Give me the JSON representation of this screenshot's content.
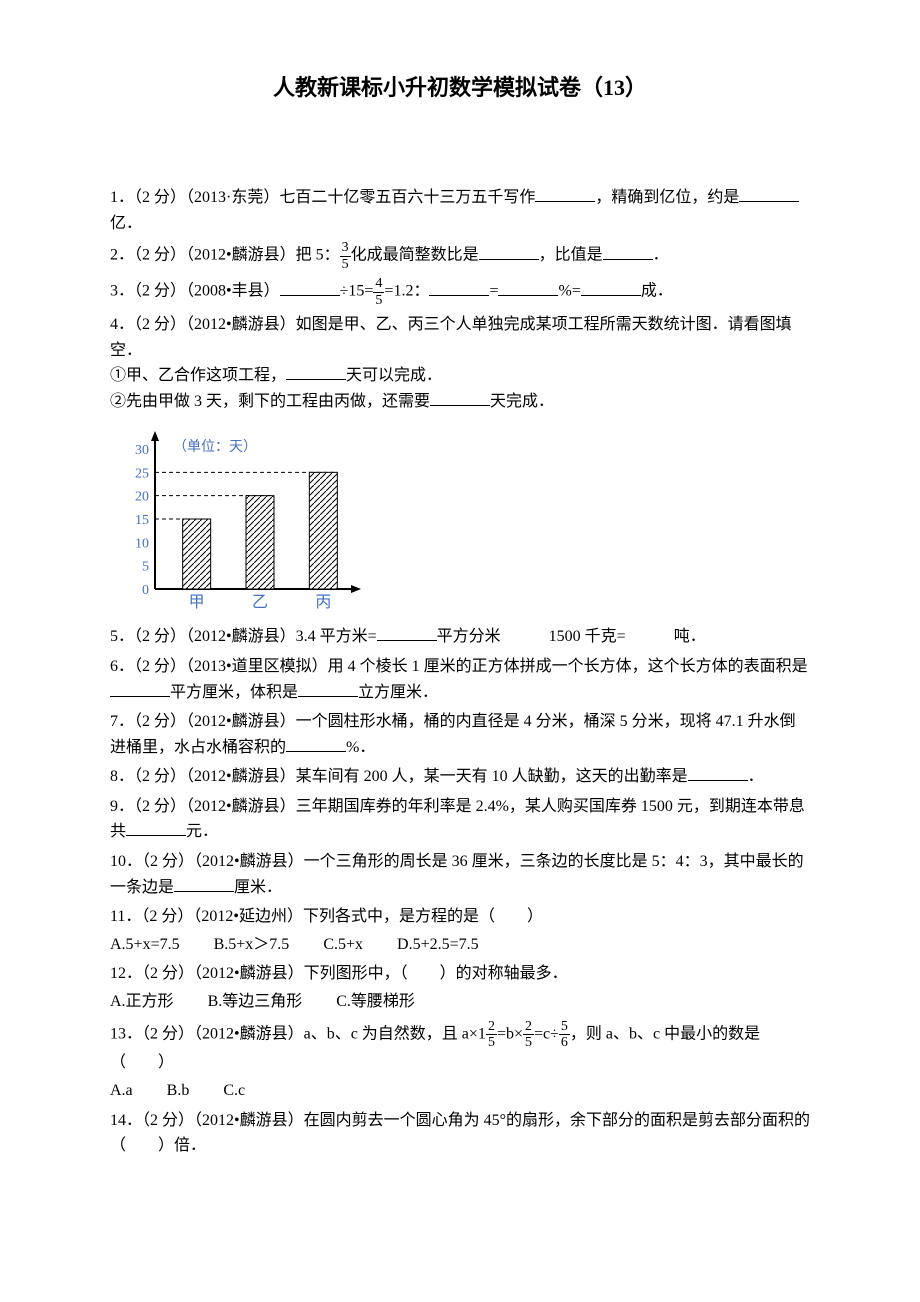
{
  "title": "人教新课标小升初数学模拟试卷（13）",
  "q1": {
    "prefix": "1．（2 分）（2013·东莞）七百二十亿零五百六十三万五千写作",
    "mid": "，精确到亿位，约是",
    "suffix": "亿．"
  },
  "q2": {
    "prefix": "2．（2 分）（2012•麟游县）把 5：",
    "frac_num": "3",
    "frac_den": "5",
    "mid1": "化成最简整数比是",
    "mid2": "，比值是",
    "suffix": "．"
  },
  "q3": {
    "prefix": "3．（2 分）（2008•丰县）",
    "mid1": "÷15=",
    "frac_num": "4",
    "frac_den": "5",
    "mid2": "=1.2：",
    "mid3": "=",
    "mid4": "%=",
    "suffix": "成．"
  },
  "q4": {
    "line1": "4．（2 分）（2012•麟游县）如图是甲、乙、丙三个人单独完成某项工程所需天数统计图．请看图填空．",
    "line2a": "①甲、乙合作这项工程，",
    "line2b": "天可以完成．",
    "line3a": "②先由甲做 3 天，剩下的工程由丙做，还需要",
    "line3b": "天完成．"
  },
  "chart": {
    "unit_label": "（单位：天）",
    "y_ticks": [
      "0",
      "5",
      "10",
      "15",
      "20",
      "25",
      "30"
    ],
    "y_max": 30,
    "categories": [
      "甲",
      "乙",
      "丙"
    ],
    "values": [
      15,
      20,
      25
    ],
    "bar_color": "#ffffff",
    "hatch_color": "#000000",
    "axis_color": "#000000",
    "dash_color": "#000000",
    "label_color": "#4472c4",
    "label_fontsize": 14
  },
  "q5": {
    "prefix": "5．（2 分）（2012•麟游县）3.4 平方米=",
    "mid": "平方分米",
    "gap": "　　　",
    "mid2": "1500 千克=　　　吨．"
  },
  "q6": {
    "line1": "6．（2 分）（2013•道里区模拟）用 4 个棱长 1 厘米的正方体拼成一个长方体，这个长方体的表面积是",
    "mid": "平方厘米，体积是",
    "suffix": "立方厘米．"
  },
  "q7": {
    "prefix": "7．（2 分）（2012•麟游县）一个圆柱形水桶，桶的内直径是 4 分米，桶深 5 分米，现将 47.1 升水倒进桶里，水占水桶容积的",
    "suffix": "%．"
  },
  "q8": {
    "prefix": "8．（2 分）（2012•麟游县）某车间有 200 人，某一天有 10 人缺勤，这天的出勤率是",
    "suffix": "．"
  },
  "q9": {
    "prefix": "9．（2 分）（2012•麟游县）三年期国库券的年利率是 2.4%，某人购买国库券 1500 元，到期连本带息共",
    "suffix": "元．"
  },
  "q10": {
    "prefix": "10．（2 分）（2012•麟游县）一个三角形的周长是 36 厘米，三条边的长度比是 5：4：3，其中最长的一条边是",
    "suffix": "厘米．"
  },
  "q11": {
    "stem": "11．（2 分）（2012•延边州）下列各式中，是方程的是（　　）",
    "optA": "A.5+x=7.5",
    "optB": "B.5+x＞7.5",
    "optC": "C.5+x",
    "optD": "D.5+2.5=7.5"
  },
  "q12": {
    "stem": "12．（2 分）（2012•麟游县）下列图形中，（　　）的对称轴最多．",
    "optA": "A.正方形",
    "optB": "B.等边三角形",
    "optC": "C.等腰梯形"
  },
  "q13": {
    "prefix": "13．（2 分）（2012•麟游县）a、b、c 为自然数，且 a×1",
    "f1_num": "2",
    "f1_den": "5",
    "mid1": "=b×",
    "f2_num": "2",
    "f2_den": "5",
    "mid2": "=c÷",
    "f3_num": "5",
    "f3_den": "6",
    "suffix": "，则 a、b、c 中最小的数是（　　）",
    "optA": "A.a",
    "optB": "B.b",
    "optC": "C.c"
  },
  "q14": {
    "stem": "14．（2 分）（2012•麟游县）在圆内剪去一个圆心角为 45°的扇形，余下部分的面积是剪去部分面积的（　　）倍．"
  }
}
